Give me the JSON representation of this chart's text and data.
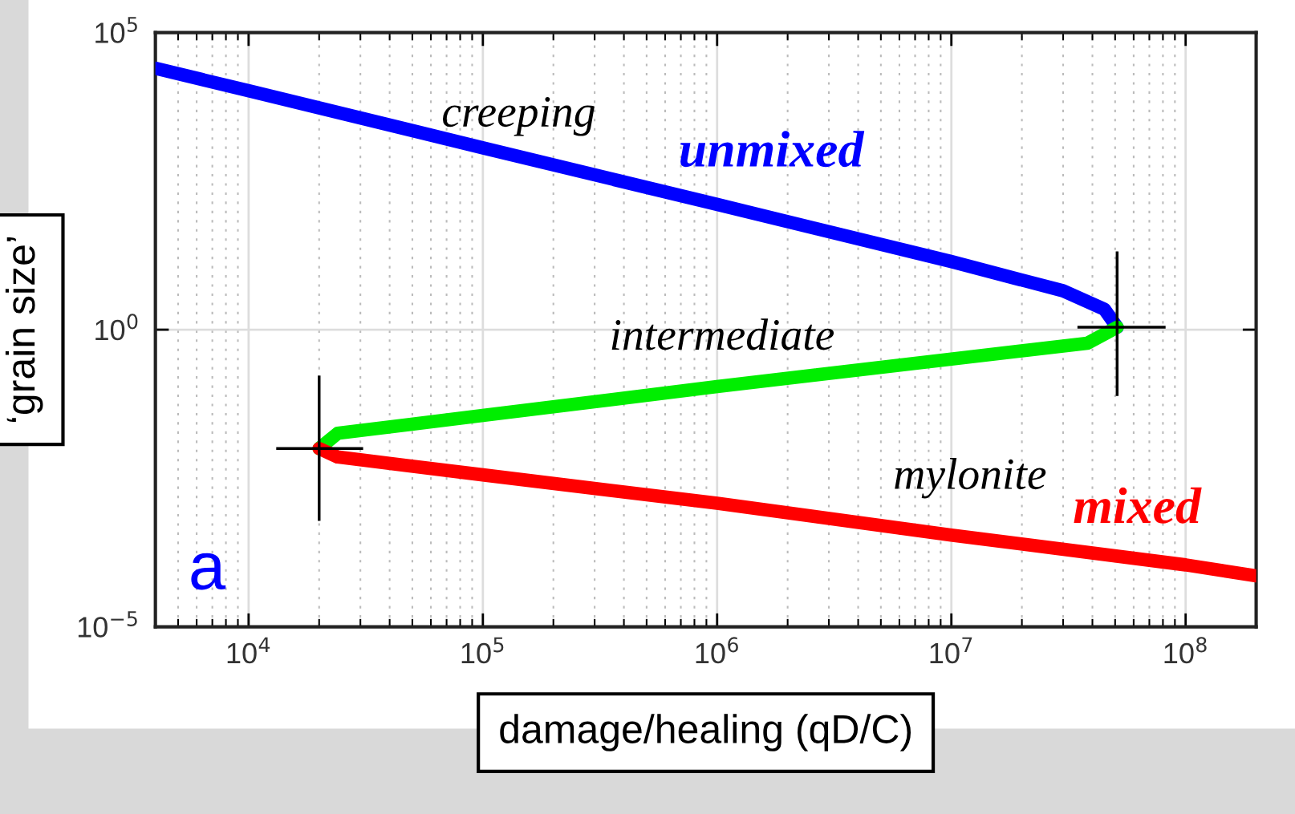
{
  "chart_data": {
    "type": "line",
    "xlabel": "damage/healing (qD/C)",
    "ylabel": "‘grain size’",
    "log": "xy",
    "xlim": [
      4000,
      200000000
    ],
    "ylim": [
      1e-05,
      100000
    ],
    "xticks": [
      {
        "value": 10000,
        "label": "10$^{4}$"
      },
      {
        "value": 100000,
        "label": "10$^{5}$"
      },
      {
        "value": 1000000,
        "label": "10$^{6}$"
      },
      {
        "value": 10000000,
        "label": "10$^{7}$"
      },
      {
        "value": 100000000,
        "label": "10$^{8}$"
      }
    ],
    "yticks": [
      {
        "value": 1e-05,
        "label": "10$^{−5}$"
      },
      {
        "value": 1,
        "label": "10$^{0}$"
      },
      {
        "value": 100000,
        "label": "10$^{5}$"
      }
    ],
    "grid": true,
    "marker": "none",
    "line_style": "solid",
    "series": [
      {
        "name": "unmixed",
        "color": "#0000ff",
        "x": [
          4000,
          10000,
          100000,
          1000000,
          10000000,
          30000000,
          45000000,
          51000000
        ],
        "values": [
          25000,
          10500,
          1150,
          128,
          14,
          4.5,
          2.2,
          1.1
        ],
        "errors": [
          null,
          null,
          null,
          null,
          null,
          null,
          null,
          [
            0.081,
            19.6
          ]
        ],
        "xerrors": [
          null,
          null,
          null,
          null,
          null,
          null,
          null,
          [
            35000000,
            81000000
          ]
        ]
      },
      {
        "name": "intermediate",
        "color": "#00ee00",
        "x": [
          20000,
          24000,
          100000,
          1000000,
          10000000,
          38000000,
          46000000,
          51000000
        ],
        "values": [
          0.01,
          0.018,
          0.036,
          0.11,
          0.32,
          0.59,
          0.88,
          1.1
        ]
      },
      {
        "name": "mixed",
        "color": "#ff0000",
        "x": [
          20000,
          24000,
          100000,
          1000000,
          10000000,
          100000000,
          200000000
        ],
        "values": [
          0.01,
          0.0072,
          0.0036,
          0.0012,
          0.00035,
          0.00011,
          7.2e-05
        ],
        "errors": [
          [
            0.00064,
            0.16
          ],
          null,
          null,
          null,
          null,
          null,
          null
        ],
        "xerrors": [
          [
            13300,
            30400
          ],
          null,
          null,
          null,
          null,
          null,
          null
        ]
      }
    ],
    "annotations": [
      "creeping",
      "mylonite",
      "a"
    ]
  }
}
